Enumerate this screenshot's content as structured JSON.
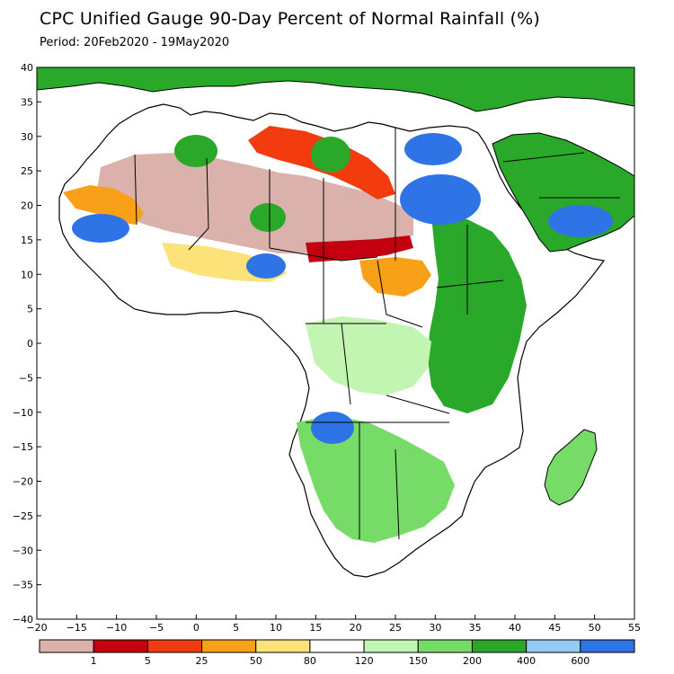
{
  "title": "CPC Unified Gauge 90-Day Percent of Normal Rainfall (%)",
  "period": "Period: 20Feb2020 - 19May2020",
  "axes": {
    "x": {
      "range": [
        -20,
        55
      ],
      "ticks": [
        "−20",
        "−15",
        "−10",
        "−5",
        "0",
        "5",
        "10",
        "15",
        "20",
        "25",
        "30",
        "35",
        "40",
        "45",
        "50",
        "55"
      ]
    },
    "y": {
      "range": [
        -40,
        40
      ],
      "ticks": [
        "40",
        "35",
        "30",
        "25",
        "20",
        "15",
        "10",
        "5",
        "0",
        "−5",
        "−10",
        "−15",
        "−20",
        "−25",
        "−30",
        "−35",
        "−40"
      ]
    }
  },
  "legend": {
    "colors": [
      "#dbb2ab",
      "#c40010",
      "#f23c0f",
      "#f8a017",
      "#fbe37a",
      "#ffffff",
      "#c3f5b2",
      "#76dc67",
      "#2aa829",
      "#96caf5",
      "#2f74e6"
    ],
    "labels": [
      "1",
      "5",
      "25",
      "50",
      "80",
      "120",
      "150",
      "200",
      "400",
      "600"
    ]
  },
  "map": {
    "region": "Africa",
    "colors": {
      "land": "#ffffff",
      "ocean": "#ffffff",
      "border": "#000000"
    }
  }
}
